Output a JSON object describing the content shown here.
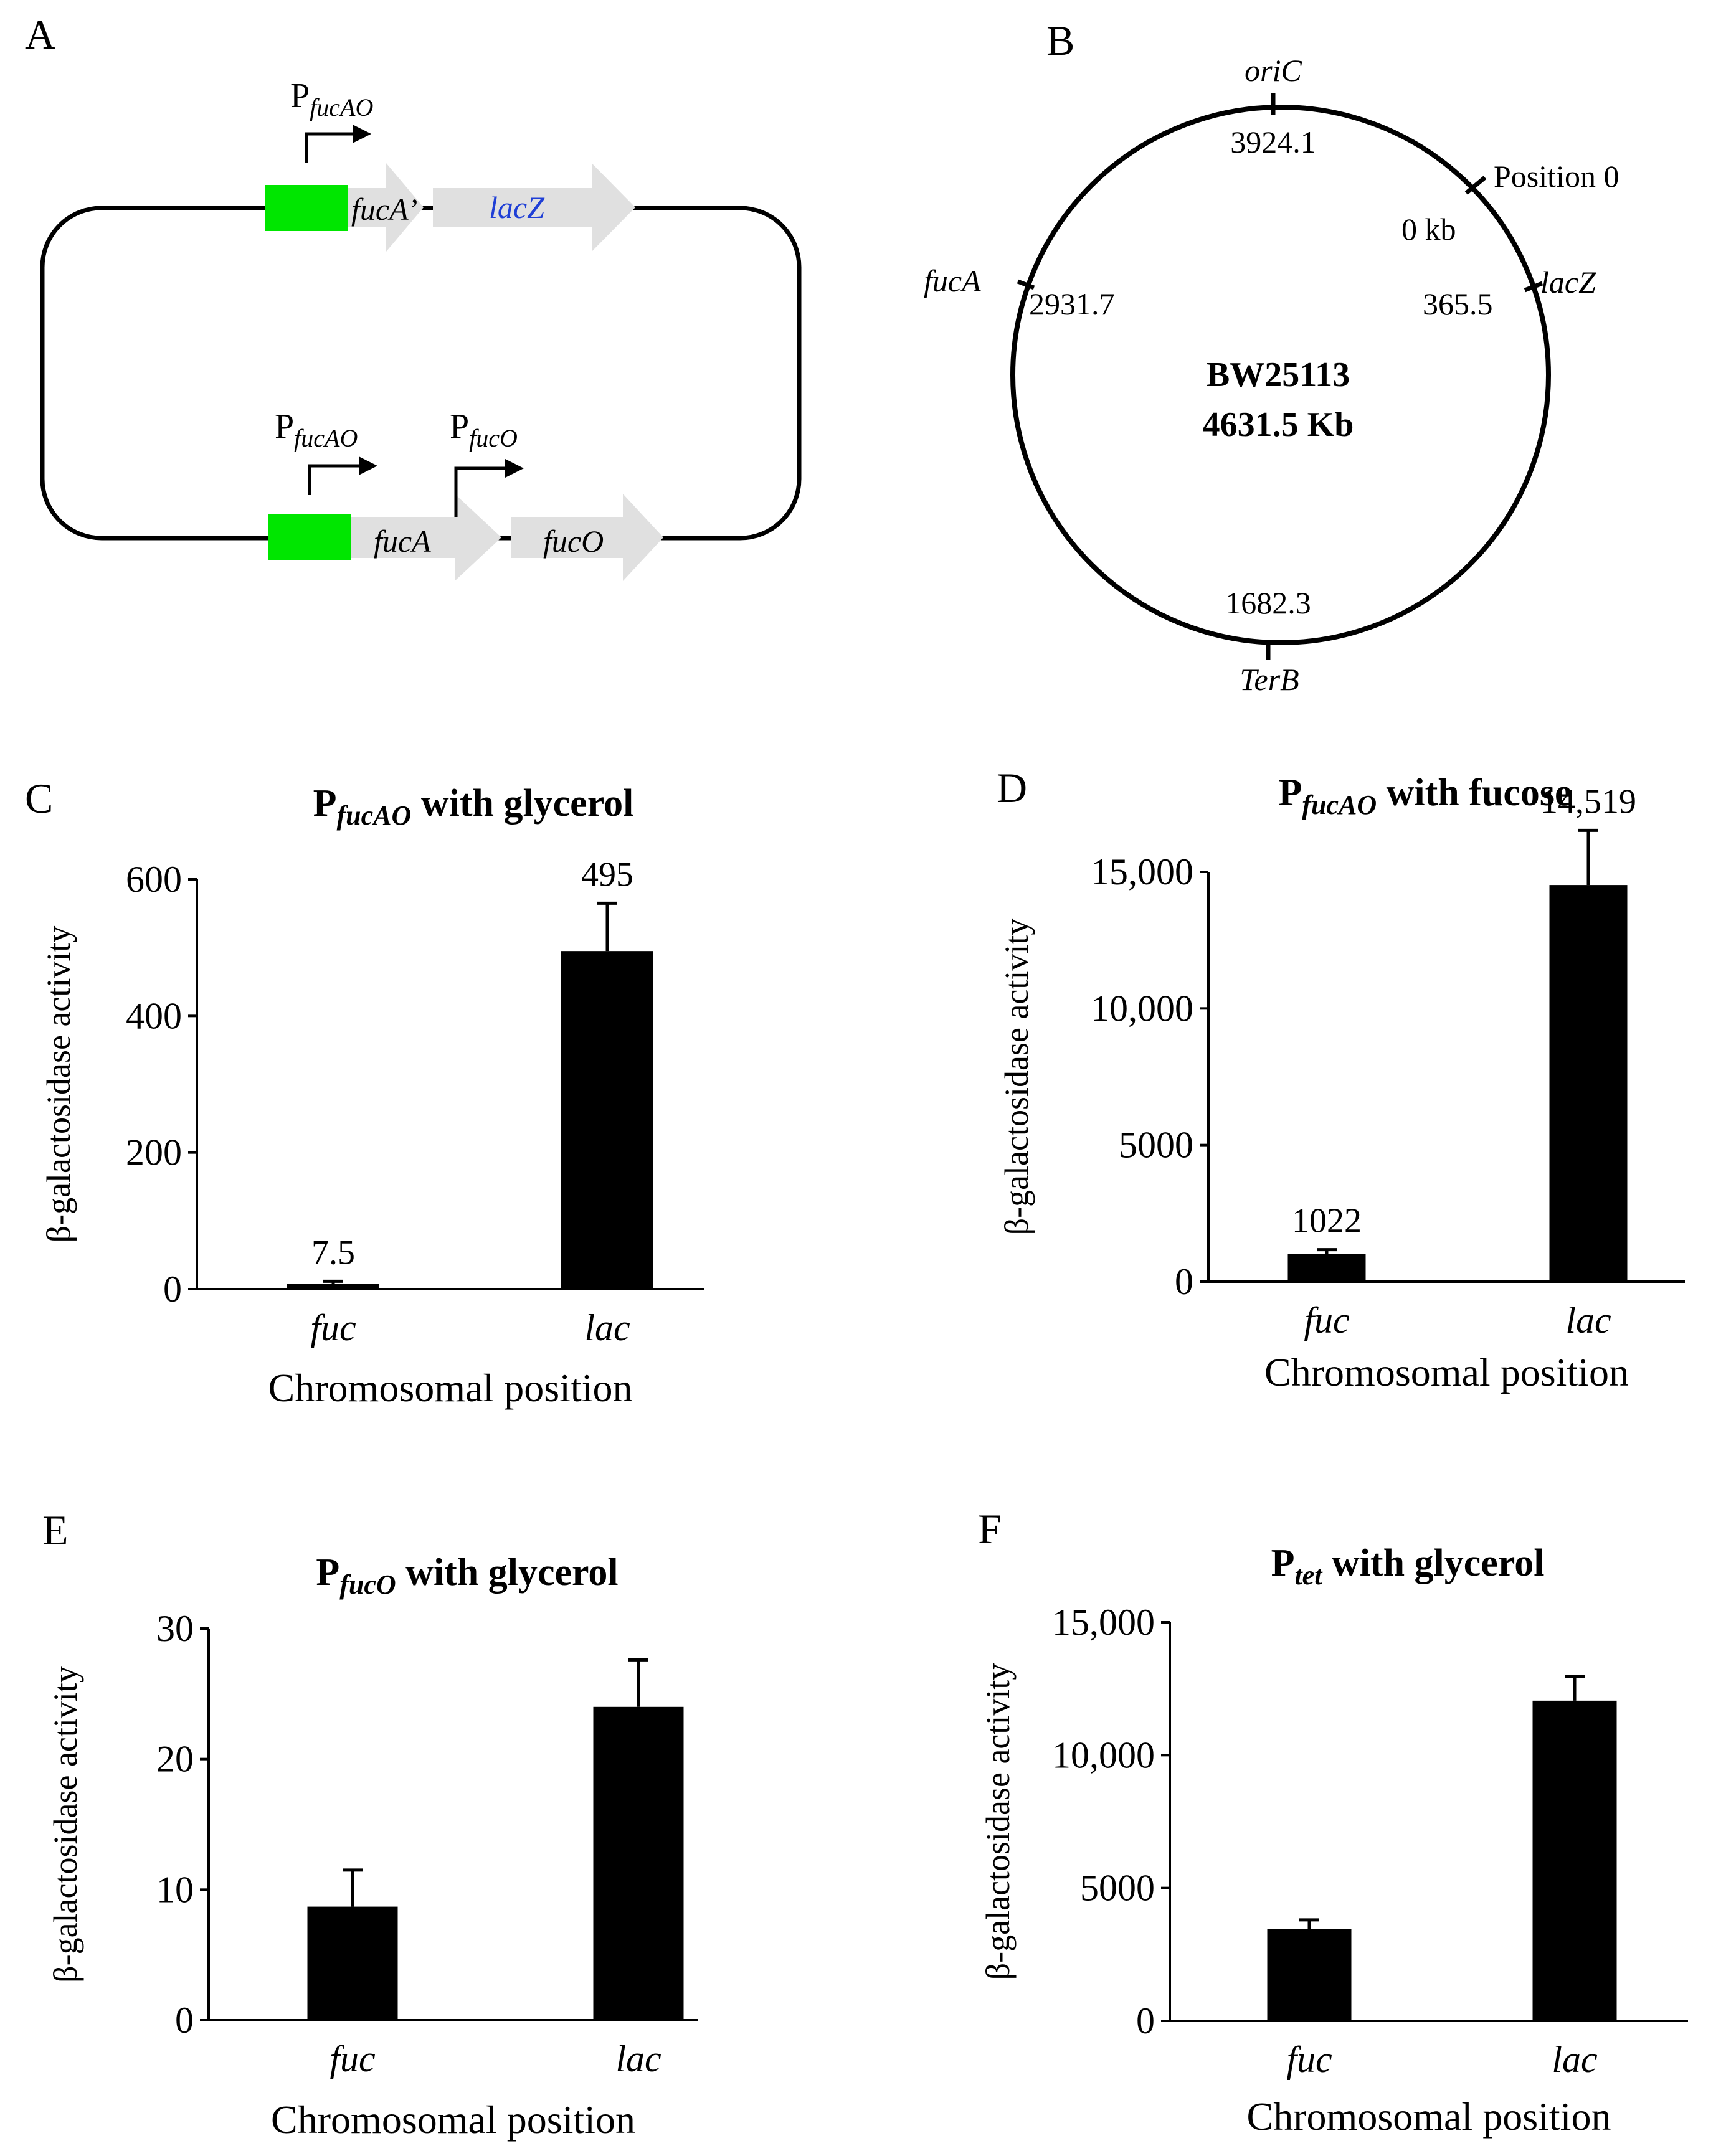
{
  "panels": {
    "A": {
      "letter": "A",
      "construct_top": {
        "promoter": {
          "base": "P",
          "sub": "fucAO"
        },
        "genes": [
          "fucA’",
          "lacZ"
        ]
      },
      "construct_bottom": {
        "promoters": [
          {
            "base": "P",
            "sub": "fucAO"
          },
          {
            "base": "P",
            "sub": "fucO"
          }
        ],
        "genes": [
          "fucA",
          "fucO"
        ]
      },
      "colors": {
        "promoter_box": "#00e600",
        "gene_arrow": "#e0e0e0",
        "lacz_text": "#1f3fd6"
      }
    },
    "B": {
      "letter": "B",
      "strain": "BW25113",
      "genome_size": "4631.5 Kb",
      "loci": [
        {
          "name": "oriC",
          "value": "3924.1"
        },
        {
          "name": "Position 0",
          "value": "0 kb"
        },
        {
          "name": "lacZ",
          "value": "365.5"
        },
        {
          "name": "fucA",
          "value": "2931.7"
        },
        {
          "name": "TerB",
          "value": "1682.3"
        }
      ]
    }
  },
  "chart_data": [
    {
      "panel": "C",
      "type": "bar",
      "title": {
        "base": "P",
        "sub": "fucAO",
        "rest": " with glycerol"
      },
      "categories": [
        "fuc",
        "lac"
      ],
      "values": [
        7.5,
        495
      ],
      "errors": [
        4,
        70
      ],
      "data_labels": [
        "7.5",
        "495"
      ],
      "ylim": [
        0,
        600
      ],
      "yticks": [
        0,
        200,
        400,
        600
      ],
      "ytick_labels": [
        "0",
        "200",
        "400",
        "600"
      ],
      "xlabel": "Chromosomal position",
      "ylabel": "β-galactosidase activity"
    },
    {
      "panel": "D",
      "type": "bar",
      "title": {
        "base": "P",
        "sub": "fucAO",
        "rest": " with fucose"
      },
      "categories": [
        "fuc",
        "lac"
      ],
      "values": [
        1022,
        14519
      ],
      "errors": [
        150,
        2000
      ],
      "data_labels": [
        "1022",
        "14,519"
      ],
      "ylim": [
        0,
        15000
      ],
      "yticks": [
        0,
        5000,
        10000,
        15000
      ],
      "ytick_labels": [
        "0",
        "5000",
        "10,000",
        "15,000"
      ],
      "xlabel": "Chromosomal position",
      "ylabel": "β-galactosidase activity"
    },
    {
      "panel": "E",
      "type": "bar",
      "title": {
        "base": "P",
        "sub": "fucO",
        "rest": " with glycerol"
      },
      "categories": [
        "fuc",
        "lac"
      ],
      "values": [
        8.7,
        24
      ],
      "errors": [
        2.8,
        3.6
      ],
      "data_labels": [],
      "ylim": [
        0,
        30
      ],
      "yticks": [
        0,
        10,
        20,
        30
      ],
      "ytick_labels": [
        "0",
        "10",
        "20",
        "30"
      ],
      "xlabel": "Chromosomal position",
      "ylabel": "β-galactosidase activity"
    },
    {
      "panel": "F",
      "type": "bar",
      "title": {
        "base": "P",
        "sub": "tet",
        "rest": " with glycerol"
      },
      "categories": [
        "fuc",
        "lac"
      ],
      "values": [
        3450,
        12050
      ],
      "errors": [
        350,
        900
      ],
      "data_labels": [],
      "ylim": [
        0,
        15000
      ],
      "yticks": [
        0,
        5000,
        10000,
        15000
      ],
      "ytick_labels": [
        "0",
        "5000",
        "10,000",
        "15,000"
      ],
      "xlabel": "Chromosomal position",
      "ylabel": "β-galactosidase activity"
    }
  ]
}
